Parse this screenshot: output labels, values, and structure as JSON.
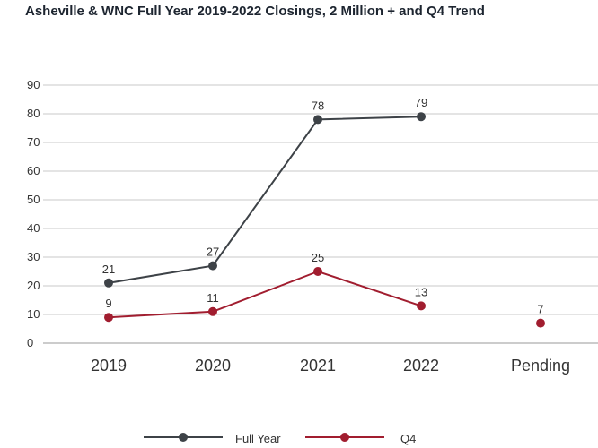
{
  "chart_data": {
    "type": "line",
    "title": "Asheville & WNC Full Year 2019-2022 Closings, 2 Million + and Q4 Trend",
    "categories": [
      "2019",
      "2020",
      "2021",
      "2022",
      "Pending"
    ],
    "series": [
      {
        "name": "Full Year",
        "color": "#3d4247",
        "values": [
          21,
          27,
          78,
          79,
          null
        ]
      },
      {
        "name": "Q4",
        "color": "#a11d2f",
        "values": [
          9,
          11,
          25,
          13,
          7
        ]
      }
    ],
    "ylim": [
      0,
      90
    ],
    "yticks": [
      0,
      10,
      20,
      30,
      40,
      50,
      60,
      70,
      80,
      90
    ],
    "grid": true,
    "legend": "bottom-center"
  }
}
